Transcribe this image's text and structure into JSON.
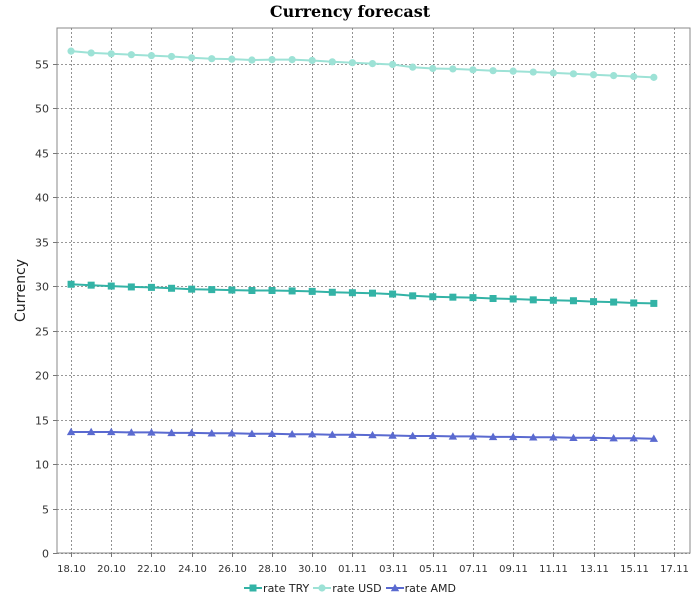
{
  "chart_data": {
    "type": "line",
    "title": "Currency forecast",
    "ylabel": "Currency",
    "xlabel": "",
    "ylim": [
      0,
      59
    ],
    "yticks": [
      0,
      5,
      10,
      15,
      20,
      25,
      30,
      35,
      40,
      45,
      50,
      55
    ],
    "xtick_labels": [
      "18.10",
      "20.10",
      "22.10",
      "24.10",
      "26.10",
      "28.10",
      "30.10",
      "01.11",
      "03.11",
      "05.11",
      "07.11",
      "09.11",
      "11.11",
      "13.11",
      "15.11",
      "17.11"
    ],
    "x": [
      "18.10",
      "19.10",
      "20.10",
      "21.10",
      "22.10",
      "23.10",
      "24.10",
      "25.10",
      "26.10",
      "27.10",
      "28.10",
      "29.10",
      "30.10",
      "31.10",
      "01.11",
      "02.11",
      "03.11",
      "04.11",
      "05.11",
      "06.11",
      "07.11",
      "08.11",
      "09.11",
      "10.11",
      "11.11",
      "12.11",
      "13.11",
      "14.11",
      "15.11",
      "16.11"
    ],
    "grid": true,
    "legend_position": "bottom",
    "series": [
      {
        "name": "rate TRY",
        "color": "#33b3a6",
        "marker": "square",
        "values": [
          30.2,
          30.1,
          30.0,
          29.9,
          29.85,
          29.75,
          29.65,
          29.6,
          29.55,
          29.5,
          29.5,
          29.45,
          29.4,
          29.3,
          29.25,
          29.2,
          29.1,
          28.9,
          28.8,
          28.75,
          28.7,
          28.6,
          28.55,
          28.45,
          28.4,
          28.35,
          28.25,
          28.2,
          28.1,
          28.05
        ]
      },
      {
        "name": "rate USD",
        "color": "#9de2d6",
        "marker": "circle",
        "values": [
          56.4,
          56.2,
          56.1,
          56.0,
          55.9,
          55.8,
          55.65,
          55.55,
          55.5,
          55.4,
          55.45,
          55.45,
          55.35,
          55.2,
          55.1,
          55.0,
          54.9,
          54.6,
          54.45,
          54.4,
          54.3,
          54.2,
          54.15,
          54.05,
          53.95,
          53.85,
          53.75,
          53.65,
          53.55,
          53.45
        ]
      },
      {
        "name": "rate AMD",
        "color": "#5a6ad0",
        "marker": "triangle",
        "values": [
          13.6,
          13.6,
          13.6,
          13.55,
          13.55,
          13.5,
          13.5,
          13.45,
          13.45,
          13.4,
          13.4,
          13.35,
          13.35,
          13.3,
          13.3,
          13.25,
          13.2,
          13.15,
          13.15,
          13.1,
          13.1,
          13.05,
          13.05,
          13.0,
          13.0,
          12.95,
          12.95,
          12.9,
          12.9,
          12.85
        ]
      }
    ]
  }
}
